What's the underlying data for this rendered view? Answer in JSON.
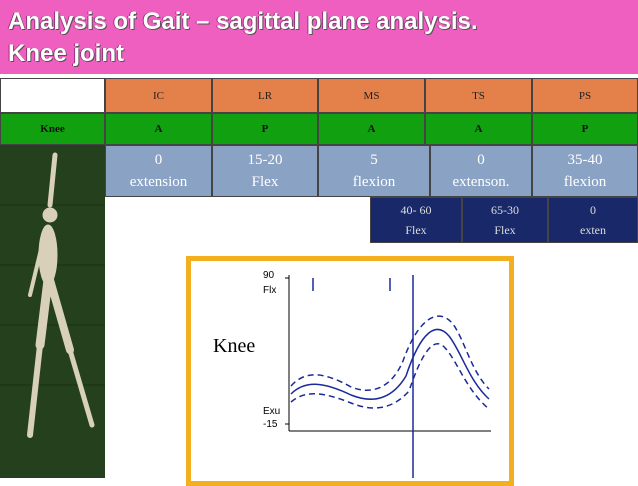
{
  "header": {
    "title_line1": "Analysis of Gait – sagittal plane analysis.",
    "title_line2": "Knee joint"
  },
  "table": {
    "phases": [
      "IC",
      "LR",
      "MS",
      "TS",
      "PS"
    ],
    "row_label": "Knee",
    "muscle_action": [
      "A",
      "P",
      "A",
      "A",
      "P"
    ],
    "ranges": [
      {
        "value": "0",
        "desc": "extension"
      },
      {
        "value": "15-20",
        "desc": "Flex"
      },
      {
        "value": "5",
        "desc": "flexion"
      },
      {
        "value": "0",
        "desc": "extenson."
      },
      {
        "value": "35-40",
        "desc": "flexion"
      }
    ],
    "swing_ranges": [
      {
        "value": "40- 60",
        "desc": "Flex"
      },
      {
        "value": "65-30",
        "desc": "Flex"
      },
      {
        "value": "0",
        "desc": "exten"
      }
    ]
  },
  "figure": {
    "label": "Knee",
    "axis_labels": [
      "90",
      "Flx",
      "Exu",
      "-15"
    ]
  }
}
